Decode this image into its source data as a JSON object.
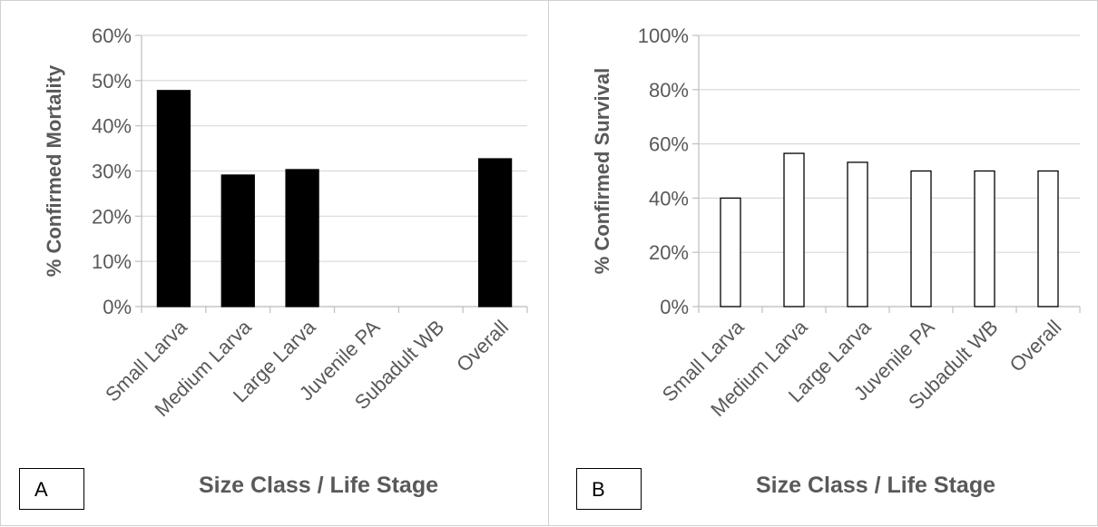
{
  "chart_data": [
    {
      "panel_label": "A",
      "type": "bar",
      "categories": [
        "Small Larva",
        "Medium Larva",
        "Large Larva",
        "Juvenile PA",
        "Subadult WB",
        "Overall"
      ],
      "values": [
        0.478,
        0.291,
        0.303,
        0,
        0,
        0.327
      ],
      "ylabel": "% Confirmed Mortality",
      "xlabel": "Size Class / Life Stage",
      "ylim": [
        0,
        0.6
      ],
      "yticks": [
        "0%",
        "10%",
        "20%",
        "30%",
        "40%",
        "50%",
        "60%"
      ],
      "grid": true,
      "bar_fill": "#000000",
      "bar_stroke": "#000000"
    },
    {
      "panel_label": "B",
      "type": "bar",
      "categories": [
        "Small Larva",
        "Medium Larva",
        "Large Larva",
        "Juvenile PA",
        "Subadult WB",
        "Overall"
      ],
      "values": [
        0.4,
        0.565,
        0.532,
        0.5,
        0.5,
        0.5
      ],
      "ylabel": "% Confirmed Survival",
      "xlabel": "Size Class / Life Stage",
      "ylim": [
        0,
        1.0
      ],
      "yticks": [
        "0%",
        "20%",
        "40%",
        "60%",
        "80%",
        "100%"
      ],
      "grid": true,
      "bar_fill": "#ffffff",
      "bar_stroke": "#000000"
    }
  ]
}
